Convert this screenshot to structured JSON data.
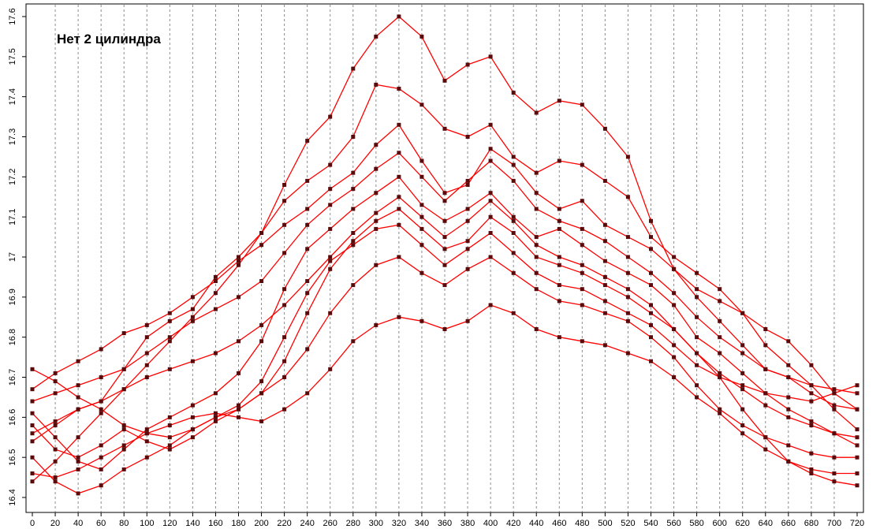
{
  "chart_data": {
    "type": "line",
    "title": "Нет 2 цилиндра",
    "xlabel": "",
    "ylabel": "",
    "xlim": [
      0,
      720
    ],
    "ylim": [
      16.4,
      17.6
    ],
    "x_ticks": [
      "0",
      "20",
      "40",
      "60",
      "80",
      "100",
      "120",
      "140",
      "160",
      "180",
      "200",
      "220",
      "240",
      "260",
      "280",
      "300",
      "320",
      "340",
      "360",
      "380",
      "400",
      "420",
      "440",
      "460",
      "480",
      "500",
      "520",
      "540",
      "560",
      "580",
      "600",
      "620",
      "640",
      "660",
      "680",
      "700",
      "720"
    ],
    "y_ticks": [
      "16.4",
      "16.5",
      "16.6",
      "16.7",
      "16.8",
      "16.9",
      "17",
      "17.1",
      "17.2",
      "17.3",
      "17.4",
      "17.5",
      "17.6"
    ],
    "grid": "vertical dashed",
    "legend": "none",
    "colors": {
      "line": "#ff0000",
      "marker": "#5a0a0a",
      "grid": "#8c8c8c",
      "axis": "#000000"
    },
    "series": [
      {
        "x": [
          0,
          20,
          40,
          60,
          80,
          100,
          120,
          140,
          160,
          180,
          200,
          220,
          240,
          260,
          280,
          300,
          320,
          340,
          360,
          380,
          400,
          420,
          440,
          460,
          480,
          500,
          520,
          540,
          560,
          580,
          600,
          620,
          640,
          660,
          680,
          700,
          720
        ],
        "y": [
          16.56,
          16.59,
          16.62,
          16.64,
          16.72,
          16.8,
          16.84,
          16.87,
          16.95,
          17.0,
          17.06,
          17.18,
          17.29,
          17.35,
          17.47,
          17.55,
          17.6,
          17.55,
          17.44,
          17.48,
          17.5,
          17.41,
          17.36,
          17.39,
          17.38,
          17.32,
          17.25,
          17.09,
          16.97,
          16.92,
          16.89,
          16.86,
          16.82,
          16.79,
          16.73,
          16.66,
          16.62
        ]
      },
      {
        "x": [
          0,
          20,
          40,
          60,
          80,
          100,
          120,
          140,
          160,
          180,
          200,
          220,
          240,
          260,
          280,
          300,
          320,
          340,
          360,
          380,
          400,
          420,
          440,
          460,
          480,
          500,
          520,
          540,
          560,
          580,
          600,
          620,
          640,
          660,
          680,
          700,
          720
        ],
        "y": [
          16.44,
          16.49,
          16.55,
          16.61,
          16.67,
          16.73,
          16.79,
          16.85,
          16.91,
          16.98,
          17.06,
          17.14,
          17.19,
          17.23,
          17.3,
          17.43,
          17.42,
          17.38,
          17.32,
          17.3,
          17.33,
          17.25,
          17.21,
          17.24,
          17.23,
          17.19,
          17.15,
          17.05,
          17.0,
          16.96,
          16.92,
          16.86,
          16.78,
          16.73,
          16.68,
          16.62,
          16.57
        ]
      },
      {
        "x": [
          0,
          20,
          40,
          60,
          80,
          100,
          120,
          140,
          160,
          180,
          200,
          220,
          240,
          260,
          280,
          300,
          320,
          340,
          360,
          380,
          400,
          420,
          440,
          460,
          480,
          500,
          520,
          540,
          560,
          580,
          600,
          620,
          640,
          660,
          680,
          700,
          720
        ],
        "y": [
          16.67,
          16.71,
          16.74,
          16.77,
          16.81,
          16.83,
          16.86,
          16.9,
          16.94,
          16.99,
          17.03,
          17.08,
          17.12,
          17.17,
          17.21,
          17.28,
          17.33,
          17.24,
          17.16,
          17.18,
          17.27,
          17.23,
          17.16,
          17.12,
          17.14,
          17.08,
          17.05,
          17.02,
          16.97,
          16.9,
          16.84,
          16.78,
          16.72,
          16.7,
          16.66,
          16.63,
          16.62
        ]
      },
      {
        "x": [
          0,
          20,
          40,
          60,
          80,
          100,
          120,
          140,
          160,
          180,
          200,
          220,
          240,
          260,
          280,
          300,
          320,
          340,
          360,
          380,
          400,
          420,
          440,
          460,
          480,
          500,
          520,
          540,
          560,
          580,
          600,
          620,
          640,
          660,
          680,
          700,
          720
        ],
        "y": [
          16.61,
          16.55,
          16.49,
          16.47,
          16.52,
          16.57,
          16.6,
          16.63,
          16.66,
          16.71,
          16.79,
          16.92,
          17.02,
          17.07,
          17.12,
          17.16,
          17.2,
          17.13,
          17.09,
          17.12,
          17.16,
          17.1,
          17.05,
          17.07,
          17.03,
          16.99,
          16.96,
          16.93,
          16.88,
          16.8,
          16.76,
          16.71,
          16.66,
          16.62,
          16.59,
          16.56,
          16.53
        ]
      },
      {
        "x": [
          0,
          20,
          40,
          60,
          80,
          100,
          120,
          140,
          160,
          180,
          200,
          220,
          240,
          260,
          280,
          300,
          320,
          340,
          360,
          380,
          400,
          420,
          440,
          460,
          480,
          500,
          520,
          540,
          560,
          580,
          600,
          620,
          640,
          660,
          680,
          700,
          720
        ],
        "y": [
          16.5,
          16.44,
          16.41,
          16.43,
          16.47,
          16.5,
          16.53,
          16.57,
          16.6,
          16.62,
          16.66,
          16.74,
          16.86,
          16.97,
          17.04,
          17.09,
          17.12,
          17.07,
          17.02,
          17.04,
          17.1,
          17.06,
          17.0,
          16.98,
          16.96,
          16.93,
          16.9,
          16.86,
          16.82,
          16.76,
          16.7,
          16.62,
          16.55,
          16.49,
          16.46,
          16.44,
          16.43
        ]
      },
      {
        "x": [
          0,
          20,
          40,
          60,
          80,
          100,
          120,
          140,
          160,
          180,
          200,
          220,
          240,
          260,
          280,
          300,
          320,
          340,
          360,
          380,
          400,
          420,
          440,
          460,
          480,
          500,
          520,
          540,
          560,
          580,
          600,
          620,
          640,
          660,
          680,
          700,
          720
        ],
        "y": [
          16.72,
          16.69,
          16.65,
          16.62,
          16.58,
          16.56,
          16.55,
          16.57,
          16.6,
          16.63,
          16.69,
          16.8,
          16.91,
          16.99,
          17.03,
          17.07,
          17.08,
          17.03,
          16.98,
          17.02,
          17.06,
          17.01,
          16.96,
          16.93,
          16.92,
          16.89,
          16.86,
          16.83,
          16.78,
          16.73,
          16.7,
          16.68,
          16.66,
          16.65,
          16.64,
          16.66,
          16.68
        ]
      },
      {
        "x": [
          0,
          20,
          40,
          60,
          80,
          100,
          120,
          140,
          160,
          180,
          200,
          220,
          240,
          260,
          280,
          300,
          320,
          340,
          360,
          380,
          400,
          420,
          440,
          460,
          480,
          500,
          520,
          540,
          560,
          580,
          600,
          620,
          640,
          660,
          680,
          700,
          720
        ],
        "y": [
          16.58,
          16.52,
          16.5,
          16.53,
          16.57,
          16.54,
          16.52,
          16.55,
          16.59,
          16.62,
          16.66,
          16.7,
          16.77,
          16.86,
          16.93,
          16.98,
          17.0,
          16.96,
          16.93,
          16.97,
          17.0,
          16.96,
          16.92,
          16.89,
          16.88,
          16.86,
          16.84,
          16.8,
          16.75,
          16.68,
          16.62,
          16.58,
          16.55,
          16.53,
          16.51,
          16.5,
          16.5
        ]
      },
      {
        "x": [
          0,
          20,
          40,
          60,
          80,
          100,
          120,
          140,
          160,
          180,
          200,
          220,
          240,
          260,
          280,
          300,
          320,
          340,
          360,
          380,
          400,
          420,
          440,
          460,
          480,
          500,
          520,
          540,
          560,
          580,
          600,
          620,
          640,
          660,
          680,
          700,
          720
        ],
        "y": [
          16.46,
          16.45,
          16.47,
          16.5,
          16.53,
          16.56,
          16.58,
          16.6,
          16.61,
          16.6,
          16.59,
          16.62,
          16.66,
          16.72,
          16.79,
          16.83,
          16.85,
          16.84,
          16.82,
          16.84,
          16.88,
          16.86,
          16.82,
          16.8,
          16.79,
          16.78,
          16.76,
          16.74,
          16.7,
          16.65,
          16.61,
          16.56,
          16.52,
          16.49,
          16.47,
          16.46,
          16.46
        ]
      },
      {
        "x": [
          0,
          20,
          40,
          60,
          80,
          100,
          120,
          140,
          160,
          180,
          200,
          220,
          240,
          260,
          280,
          300,
          320,
          340,
          360,
          380,
          400,
          420,
          440,
          460,
          480,
          500,
          520,
          540,
          560,
          580,
          600,
          620,
          640,
          660,
          680,
          700,
          720
        ],
        "y": [
          16.64,
          16.66,
          16.68,
          16.7,
          16.72,
          16.76,
          16.8,
          16.84,
          16.87,
          16.9,
          16.94,
          17.01,
          17.08,
          17.13,
          17.17,
          17.22,
          17.26,
          17.2,
          17.14,
          17.19,
          17.24,
          17.19,
          17.12,
          17.09,
          17.07,
          17.04,
          17.0,
          16.96,
          16.91,
          16.85,
          16.8,
          16.76,
          16.72,
          16.7,
          16.68,
          16.67,
          16.66
        ]
      },
      {
        "x": [
          0,
          20,
          40,
          60,
          80,
          100,
          120,
          140,
          160,
          180,
          200,
          220,
          240,
          260,
          280,
          300,
          320,
          340,
          360,
          380,
          400,
          420,
          440,
          460,
          480,
          500,
          520,
          540,
          560,
          580,
          600,
          620,
          640,
          660,
          680,
          700,
          720
        ],
        "y": [
          16.54,
          16.58,
          16.62,
          16.64,
          16.67,
          16.7,
          16.72,
          16.74,
          16.76,
          16.79,
          16.83,
          16.88,
          16.94,
          17.0,
          17.06,
          17.11,
          17.15,
          17.1,
          17.05,
          17.09,
          17.14,
          17.09,
          17.03,
          17.0,
          16.98,
          16.95,
          16.92,
          16.88,
          16.82,
          16.76,
          16.71,
          16.67,
          16.63,
          16.6,
          16.58,
          16.56,
          16.55
        ]
      }
    ]
  }
}
